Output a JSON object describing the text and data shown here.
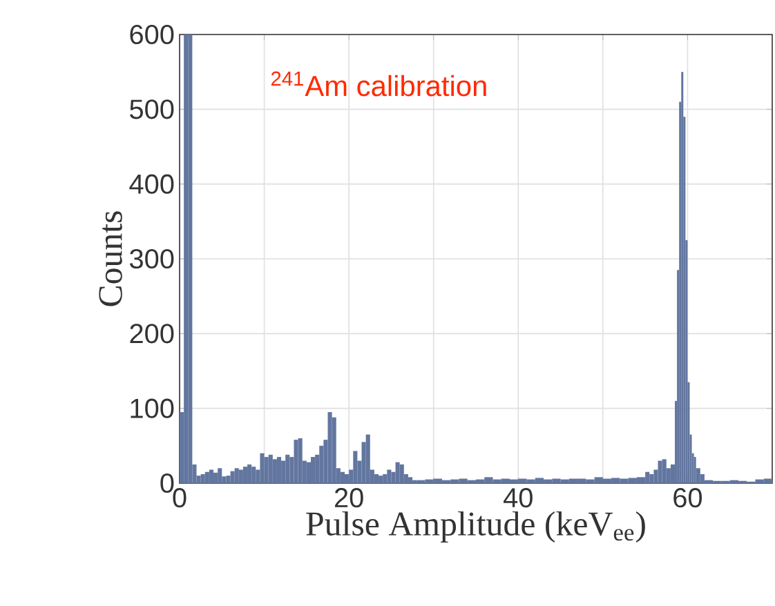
{
  "chart_data": {
    "type": "histogram",
    "xlabel": "Pulse Amplitude (keV$_{ee}$)",
    "ylabel": "Counts",
    "annotations": [
      "$^{241}$Am calibration"
    ],
    "color": "#62769f",
    "bins": [
      0,
      0.5,
      1,
      1.5,
      2,
      2.5,
      3,
      3.5,
      4,
      4.5,
      5,
      5.5,
      6,
      6.5,
      7,
      7.5,
      8,
      8.5,
      9,
      9.5,
      10,
      10.5,
      11,
      11.5,
      12,
      12.5,
      13,
      13.5,
      14,
      14.5,
      15,
      15.5,
      16,
      16.5,
      17,
      17.5,
      18,
      18.5,
      19,
      19.5,
      20,
      20.5,
      21,
      21.5,
      22,
      22.5,
      23,
      23.5,
      24,
      24.5,
      25,
      25.5,
      26,
      26.5,
      27,
      27.5,
      28,
      29,
      30,
      31,
      32,
      33,
      34,
      35,
      36,
      37,
      38,
      39,
      40,
      41,
      42,
      43,
      44,
      45,
      46,
      47,
      48,
      49,
      50,
      51,
      52,
      53,
      54,
      55,
      55.5,
      56,
      56.5,
      57,
      57.5,
      58,
      58.5,
      58.75,
      59,
      59.25,
      59.5,
      59.75,
      60,
      60.25,
      60.5,
      60.75,
      61,
      61.5,
      62,
      63,
      64,
      65,
      66,
      67,
      68,
      69,
      70
    ],
    "values": [
      95,
      600,
      600,
      25,
      10,
      12,
      15,
      18,
      14,
      20,
      9,
      10,
      16,
      20,
      18,
      22,
      25,
      22,
      18,
      40,
      35,
      38,
      32,
      35,
      30,
      38,
      35,
      58,
      60,
      30,
      28,
      35,
      38,
      50,
      58,
      95,
      88,
      20,
      15,
      12,
      18,
      43,
      30,
      55,
      65,
      18,
      12,
      10,
      12,
      18,
      15,
      28,
      25,
      12,
      8,
      4,
      4,
      5,
      6,
      4,
      5,
      6,
      4,
      5,
      8,
      5,
      6,
      5,
      6,
      5,
      7,
      5,
      6,
      5,
      6,
      6,
      5,
      8,
      6,
      7,
      6,
      7,
      8,
      15,
      12,
      18,
      30,
      32,
      20,
      25,
      110,
      285,
      510,
      550,
      490,
      325,
      135,
      65,
      40,
      35,
      20,
      12,
      4,
      3,
      3,
      4,
      3,
      2,
      5,
      6
    ],
    "xlim": [
      0,
      70
    ],
    "ylim": [
      0,
      600
    ],
    "xticks": [
      0,
      {
        "value": 10,
        "label": null
      },
      20,
      {
        "value": 30,
        "label": null
      },
      40,
      {
        "value": 50,
        "label": null
      },
      60
    ],
    "yticks": [
      0,
      100,
      200,
      300,
      400,
      500,
      600
    ],
    "grid": true
  }
}
